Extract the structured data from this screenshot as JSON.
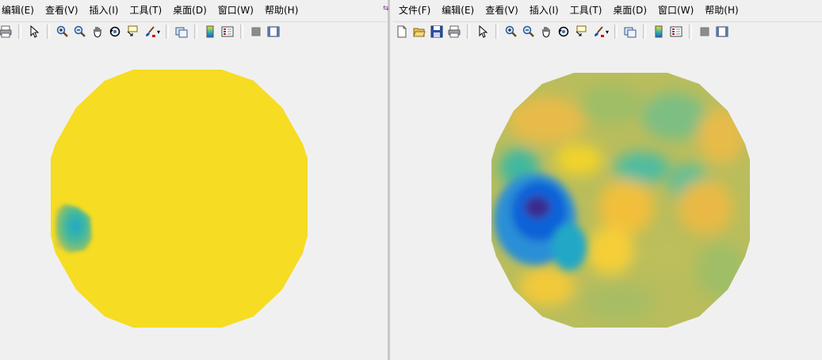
{
  "left_window": {
    "menu": [
      "编辑(E)",
      "查看(V)",
      "插入(I)",
      "工具(T)",
      "桌面(D)",
      "窗口(W)",
      "帮助(H)"
    ]
  },
  "right_window": {
    "menu": [
      "文件(F)",
      "编辑(E)",
      "查看(V)",
      "插入(I)",
      "工具(T)",
      "桌面(D)",
      "窗口(W)",
      "帮助(H)"
    ]
  },
  "colors": {
    "background": "#f0f0f0",
    "parula_yellow": "#f6dc22",
    "parula_teal": "#3fb8a0",
    "parula_blue": "#1062d8",
    "parula_dark": "#3a2a8c",
    "parula_green": "#9fbe66",
    "parula_orange": "#f2bf3a"
  },
  "icons": {
    "left_toolbar": [
      "print-icon",
      "pointer-icon",
      "zoom-in-icon",
      "zoom-out-icon",
      "pan-icon",
      "rotate-icon",
      "data-cursor-icon",
      "brush-icon",
      "link-plot-icon",
      "colorbar-icon",
      "legend-icon",
      "hide-plot-tools-icon",
      "show-plot-tools-icon"
    ],
    "right_toolbar": [
      "new-figure-icon",
      "open-file-icon",
      "save-icon",
      "print-icon",
      "pointer-icon",
      "zoom-in-icon",
      "zoom-out-icon",
      "pan-icon",
      "rotate-icon",
      "data-cursor-icon",
      "brush-icon",
      "link-plot-icon",
      "colorbar-icon",
      "legend-icon",
      "hide-plot-tools-icon",
      "show-plot-tools-icon"
    ]
  }
}
